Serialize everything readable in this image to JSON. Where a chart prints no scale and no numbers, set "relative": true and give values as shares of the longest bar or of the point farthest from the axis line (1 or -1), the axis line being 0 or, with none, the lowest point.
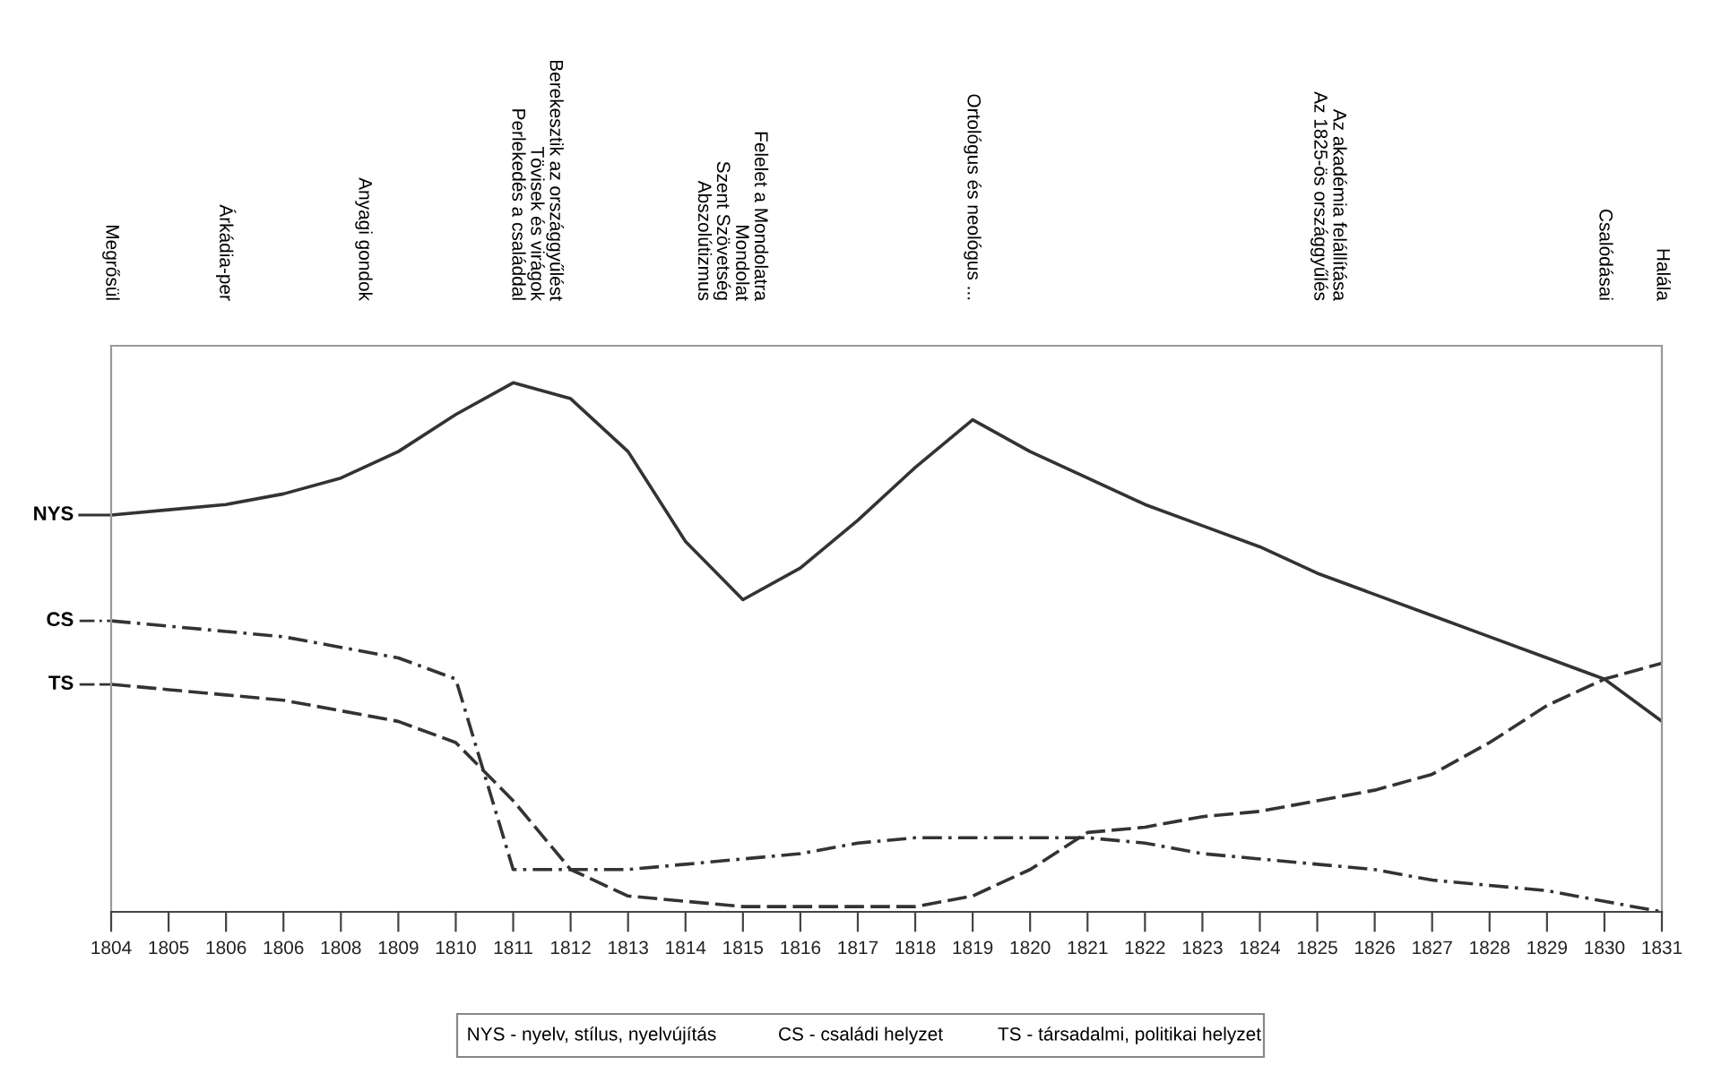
{
  "chart_data": {
    "type": "line",
    "relative": true,
    "grid": false,
    "legend": "left",
    "marker": "none",
    "categories": [
      "1804",
      "1805",
      "1806",
      "1806",
      "1808",
      "1809",
      "1810",
      "1811",
      "1812",
      "1813",
      "1814",
      "1815",
      "1816",
      "1817",
      "1818",
      "1819",
      "1820",
      "1821",
      "1822",
      "1823",
      "1824",
      "1825",
      "1826",
      "1827",
      "1828",
      "1829",
      "1830",
      "1831"
    ],
    "series": [
      {
        "name": "NYS",
        "color": "#333333",
        "line_style": "solid",
        "values": [
          0.75,
          0.76,
          0.77,
          0.79,
          0.82,
          0.87,
          0.94,
          1.0,
          0.97,
          0.87,
          0.7,
          0.59,
          0.65,
          0.74,
          0.84,
          0.93,
          0.87,
          0.82,
          0.77,
          0.73,
          0.69,
          0.64,
          0.6,
          0.56,
          0.52,
          0.48,
          0.44,
          0.36
        ]
      },
      {
        "name": "CS",
        "color": "#333333",
        "line_style": "dashdot",
        "values": [
          0.55,
          0.54,
          0.53,
          0.52,
          0.5,
          0.48,
          0.44,
          0.08,
          0.08,
          0.08,
          0.09,
          0.1,
          0.11,
          0.13,
          0.14,
          0.14,
          0.14,
          0.14,
          0.13,
          0.11,
          0.1,
          0.09,
          0.08,
          0.06,
          0.05,
          0.04,
          0.02,
          0.0
        ]
      },
      {
        "name": "TS",
        "color": "#333333",
        "line_style": "dashed",
        "values": [
          0.43,
          0.42,
          0.41,
          0.4,
          0.38,
          0.36,
          0.32,
          0.21,
          0.08,
          0.03,
          0.02,
          0.01,
          0.01,
          0.01,
          0.01,
          0.03,
          0.08,
          0.15,
          0.16,
          0.18,
          0.19,
          0.21,
          0.23,
          0.26,
          0.32,
          0.39,
          0.44,
          0.47
        ]
      }
    ],
    "annotations": [
      "Megrősül",
      "Árkádia-per",
      "Anyagi gondok",
      "Berekesztik az országgyűlést\nTövisek és virágok\nPerlekedés a családdal",
      "Felelet a Mondolatra\nMondolat\nSzent Szövetség\nAbszolútizmus",
      "Ortológus és neológus ...",
      "Az akadémia felállítása\nAz 1825-ös országgyűlés",
      "Csalódásai",
      "Halála",
      "NYS - nyelv, stílus, nyelvújítás",
      "CS - családi helyzet",
      "TS - társadalmi, politikai helyzet"
    ]
  }
}
